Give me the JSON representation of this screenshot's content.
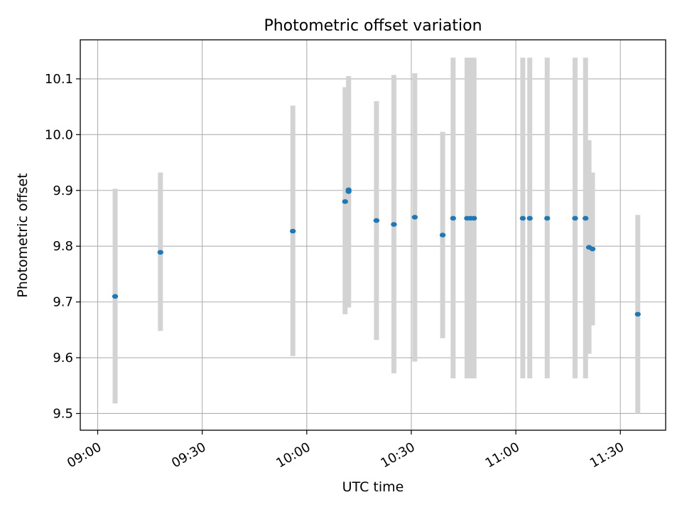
{
  "chart_data": {
    "type": "scatter",
    "title": "Photometric offset variation",
    "xlabel": "UTC time",
    "ylabel": "Photometric offset",
    "x_axis_type": "time",
    "xlim": [
      "08:55",
      "11:43"
    ],
    "ylim": [
      9.47,
      10.17
    ],
    "x_ticks": [
      "09:00",
      "09:30",
      "10:00",
      "10:30",
      "11:00",
      "11:30"
    ],
    "y_ticks": [
      9.5,
      9.6,
      9.7,
      9.8,
      9.9,
      10.0,
      10.1
    ],
    "grid": true,
    "colors": {
      "point": "#1f77b4",
      "errorbar": "#d3d3d3",
      "grid": "#b0b0b0"
    },
    "points": [
      {
        "x": "09:05",
        "y": 9.71,
        "ylo": 9.518,
        "yhi": 9.903
      },
      {
        "x": "09:18",
        "y": 9.789,
        "ylo": 9.648,
        "yhi": 9.932
      },
      {
        "x": "09:56",
        "y": 9.827,
        "ylo": 9.603,
        "yhi": 10.052
      },
      {
        "x": "10:11",
        "y": 9.88,
        "ylo": 9.678,
        "yhi": 10.085
      },
      {
        "x": "10:12",
        "y": 9.898,
        "ylo": 9.69,
        "yhi": 10.105
      },
      {
        "x": "10:12",
        "y": 9.901,
        "ylo": 9.695,
        "yhi": 10.1
      },
      {
        "x": "10:20",
        "y": 9.846,
        "ylo": 9.632,
        "yhi": 10.06
      },
      {
        "x": "10:25",
        "y": 9.839,
        "ylo": 9.572,
        "yhi": 10.107
      },
      {
        "x": "10:31",
        "y": 9.852,
        "ylo": 9.593,
        "yhi": 10.11
      },
      {
        "x": "10:39",
        "y": 9.82,
        "ylo": 9.635,
        "yhi": 10.005
      },
      {
        "x": "10:42",
        "y": 9.85,
        "ylo": 9.563,
        "yhi": 10.138
      },
      {
        "x": "10:46",
        "y": 9.85,
        "ylo": 9.563,
        "yhi": 10.138
      },
      {
        "x": "10:47",
        "y": 9.85,
        "ylo": 9.563,
        "yhi": 10.138
      },
      {
        "x": "10:48",
        "y": 9.85,
        "ylo": 9.563,
        "yhi": 10.138
      },
      {
        "x": "11:02",
        "y": 9.85,
        "ylo": 9.563,
        "yhi": 10.138
      },
      {
        "x": "11:04",
        "y": 9.85,
        "ylo": 9.563,
        "yhi": 10.138
      },
      {
        "x": "11:09",
        "y": 9.85,
        "ylo": 9.563,
        "yhi": 10.138
      },
      {
        "x": "11:17",
        "y": 9.85,
        "ylo": 9.563,
        "yhi": 10.138
      },
      {
        "x": "11:20",
        "y": 9.85,
        "ylo": 9.563,
        "yhi": 10.138
      },
      {
        "x": "11:21",
        "y": 9.798,
        "ylo": 9.607,
        "yhi": 9.99
      },
      {
        "x": "11:22",
        "y": 9.795,
        "ylo": 9.658,
        "yhi": 9.932
      },
      {
        "x": "11:35",
        "y": 9.678,
        "ylo": 9.5,
        "yhi": 9.856
      }
    ]
  }
}
